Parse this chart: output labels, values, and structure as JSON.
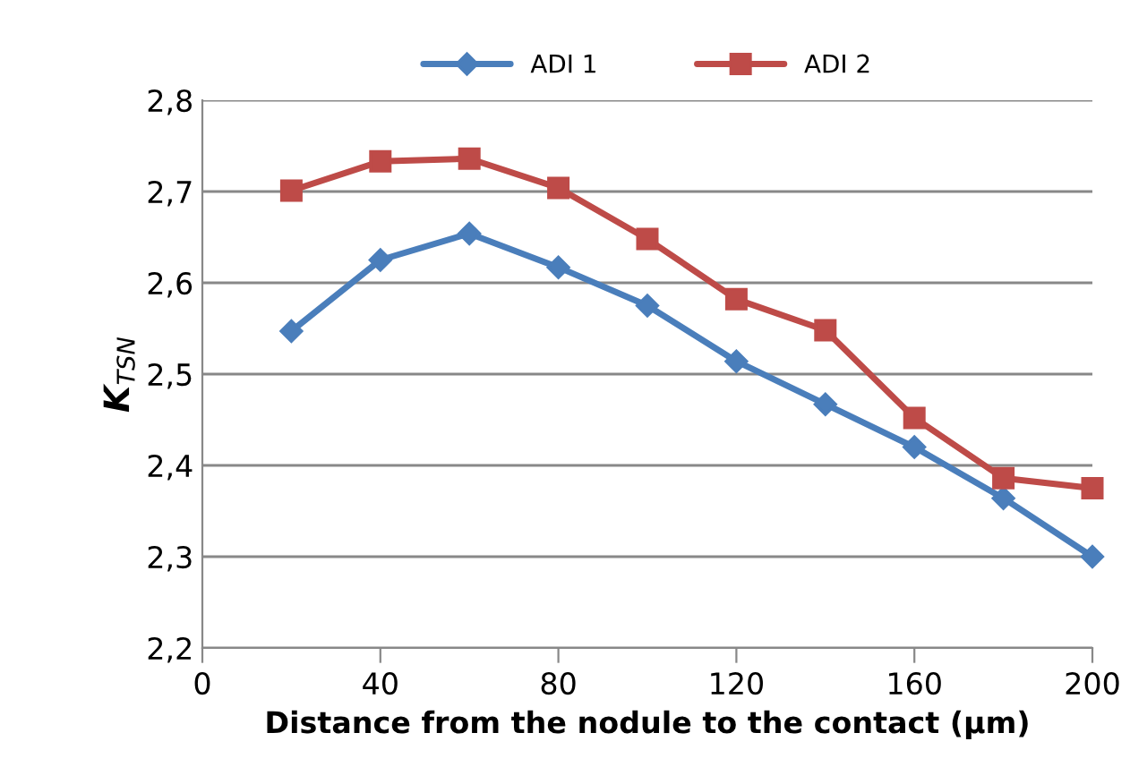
{
  "chart_data": {
    "type": "line",
    "xlabel": "Distance from the nodule to the contact (µm)",
    "ylabel": "K$_{TSN}$",
    "x": [
      20,
      40,
      60,
      80,
      100,
      120,
      140,
      160,
      180,
      200
    ],
    "series": [
      {
        "name": "ADI 1",
        "color": "#4a7ebb",
        "marker": "diamond",
        "values": [
          2.547,
          2.625,
          2.654,
          2.617,
          2.575,
          2.514,
          2.467,
          2.42,
          2.364,
          2.3
        ]
      },
      {
        "name": "ADI 2",
        "color": "#be4b48",
        "marker": "square",
        "values": [
          2.701,
          2.733,
          2.736,
          2.704,
          2.648,
          2.582,
          2.548,
          2.452,
          2.386,
          2.375
        ]
      }
    ],
    "xlim": [
      0,
      200
    ],
    "xticks": [
      0,
      40,
      80,
      120,
      160,
      200
    ],
    "ylim": [
      2.2,
      2.8
    ],
    "yticks": [
      {
        "value": 2.2,
        "label": "2,2"
      },
      {
        "value": 2.3,
        "label": "2,3"
      },
      {
        "value": 2.4,
        "label": "2,4"
      },
      {
        "value": 2.5,
        "label": "2,5"
      },
      {
        "value": 2.6,
        "label": "2,6"
      },
      {
        "value": 2.7,
        "label": "2,7"
      },
      {
        "value": 2.8,
        "label": "2,8"
      }
    ],
    "grid": "y",
    "legend": "top",
    "line_style": "solid"
  }
}
